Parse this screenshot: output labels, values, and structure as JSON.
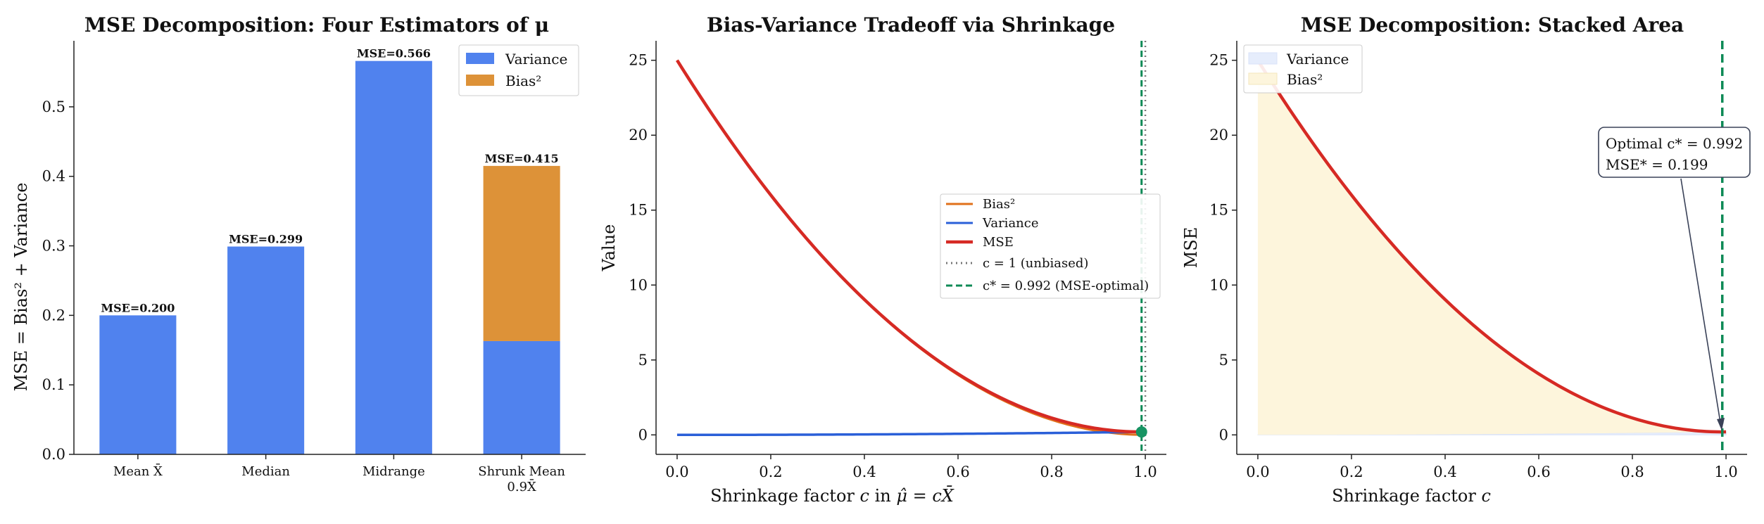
{
  "chart_data": [
    {
      "type": "bar",
      "title": "MSE Decomposition: Four Estimators of μ",
      "xlabel": "",
      "ylabel": "MSE = Bias² + Variance",
      "categories": [
        "Mean X̄",
        "Median",
        "Midrange",
        "Shrunk Mean"
      ],
      "category_sublabels": [
        "",
        "",
        "",
        "0.9X̄"
      ],
      "series": [
        {
          "name": "Variance",
          "values": [
            0.2,
            0.299,
            0.566,
            0.163
          ],
          "color": "#5082ee"
        },
        {
          "name": "Bias²",
          "values": [
            0.0,
            0.0,
            0.0,
            0.252
          ],
          "color": "#dd9238"
        }
      ],
      "mse_labels": [
        "MSE=0.200",
        "MSE=0.299",
        "MSE=0.566",
        "MSE=0.415"
      ],
      "ylim": [
        0,
        0.595
      ],
      "yticks": [
        "0.0",
        "0.1",
        "0.2",
        "0.3",
        "0.4",
        "0.5"
      ],
      "legend_position": "top-right"
    },
    {
      "type": "line",
      "title": "Bias-Variance Tradeoff via Shrinkage",
      "xlabel": "Shrinkage factor c in μ̂ = cX̄",
      "ylabel": "Value",
      "xlim": [
        -0.045,
        1.045
      ],
      "ylim": [
        -1.3,
        26.3
      ],
      "xticks": [
        "0.0",
        "0.2",
        "0.4",
        "0.6",
        "0.8",
        "1.0"
      ],
      "yticks": [
        "0",
        "5",
        "10",
        "15",
        "20",
        "25"
      ],
      "x": [
        0,
        0.1,
        0.2,
        0.3,
        0.4,
        0.5,
        0.6,
        0.7,
        0.8,
        0.9,
        0.992,
        1.045
      ],
      "series": [
        {
          "name": "Bias²",
          "values": [
            25,
            20.25,
            16,
            12.25,
            9,
            6.25,
            4,
            2.25,
            1,
            0.25,
            0.0016,
            0.051
          ],
          "color": "#e0701a"
        },
        {
          "name": "Variance",
          "values": [
            0,
            0.002,
            0.008,
            0.018,
            0.032,
            0.05,
            0.072,
            0.098,
            0.128,
            0.162,
            0.197,
            0.218
          ],
          "color": "#2a5fd8"
        },
        {
          "name": "MSE",
          "values": [
            25,
            20.252,
            16.008,
            12.268,
            9.032,
            6.3,
            4.072,
            2.348,
            1.128,
            0.412,
            0.199,
            0.269
          ],
          "color": "#d62a24"
        }
      ],
      "vlines": [
        {
          "name": "c = 1 (unbiased)",
          "x": 1.0,
          "color": "#777777",
          "style": "dotted"
        },
        {
          "name": "c* = 0.992 (MSE-optimal)",
          "x": 0.992,
          "color": "#0e8a56",
          "style": "dashed"
        }
      ],
      "optimum_point": {
        "x": 0.992,
        "y": 0.199,
        "color": "#179463"
      },
      "legend_position": "center-right"
    },
    {
      "type": "area",
      "title": "MSE Decomposition: Stacked Area",
      "xlabel": "Shrinkage factor c",
      "ylabel": "MSE",
      "xlim": [
        -0.045,
        1.045
      ],
      "ylim": [
        -1.3,
        26.3
      ],
      "xticks": [
        "0.0",
        "0.2",
        "0.4",
        "0.6",
        "0.8",
        "1.0"
      ],
      "yticks": [
        "0",
        "5",
        "10",
        "15",
        "20",
        "25"
      ],
      "series": [
        {
          "name": "Variance",
          "color": "#e6edfc"
        },
        {
          "name": "Bias²",
          "color": "#fdf5dc"
        }
      ],
      "mse_color": "#d62a24",
      "vline_color": "#0e8a56",
      "annotation": {
        "line1": "Optimal c* = 0.992",
        "line2": "MSE* = 0.199",
        "x": 0.992,
        "y": 0.199
      },
      "legend_position": "top-left"
    }
  ]
}
